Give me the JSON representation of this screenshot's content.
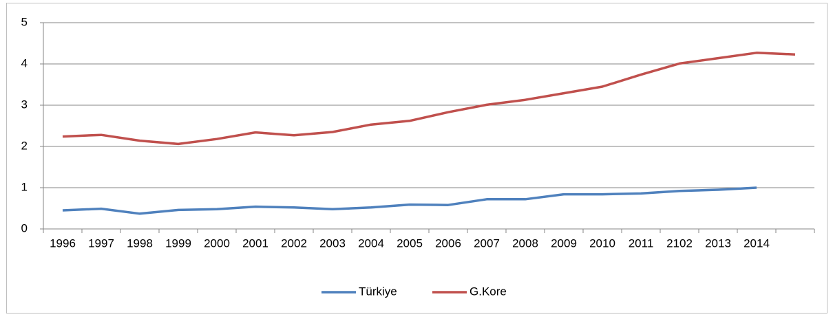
{
  "chart_data": {
    "type": "line",
    "categories": [
      "1996",
      "1997",
      "1998",
      "1999",
      "2000",
      "2001",
      "2002",
      "2003",
      "2004",
      "2005",
      "2006",
      "2007",
      "2008",
      "2009",
      "2010",
      "2011",
      "2102",
      "2013",
      "2014",
      null
    ],
    "series": [
      {
        "name": "Türkiye",
        "color": "#4f81bd",
        "values": [
          0.45,
          0.49,
          0.37,
          0.46,
          0.48,
          0.54,
          0.52,
          0.48,
          0.52,
          0.59,
          0.58,
          0.72,
          0.72,
          0.84,
          0.84,
          0.86,
          0.92,
          0.95,
          1.0,
          null
        ]
      },
      {
        "name": "G.Kore",
        "color": "#c0504d",
        "values": [
          2.24,
          2.28,
          2.14,
          2.06,
          2.18,
          2.34,
          2.27,
          2.35,
          2.53,
          2.62,
          2.83,
          3.01,
          3.13,
          3.29,
          3.45,
          3.74,
          4.01,
          4.14,
          4.27,
          4.23
        ]
      }
    ],
    "ylim": [
      0,
      5
    ],
    "yticks": [
      0,
      1,
      2,
      3,
      4,
      5
    ],
    "grid": true,
    "legend": "bottom"
  }
}
